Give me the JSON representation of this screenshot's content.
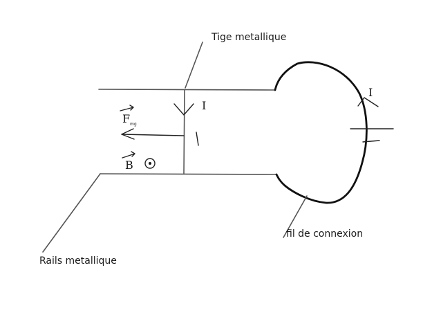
{
  "labels": {
    "tige": "Tige metallique",
    "rails": "Rails metallique",
    "fil": "fil de connexion",
    "current_top": "I",
    "current_right": "I",
    "length": "l",
    "force": "F",
    "force_subscript": "mg",
    "field": "B"
  },
  "colors": {
    "ink": "#1a1a1a",
    "rail": "#555555",
    "wire": "#111111"
  },
  "icons": {
    "field_symbol": "circle-dot-out-of-page",
    "battery": "battery-symbol"
  }
}
